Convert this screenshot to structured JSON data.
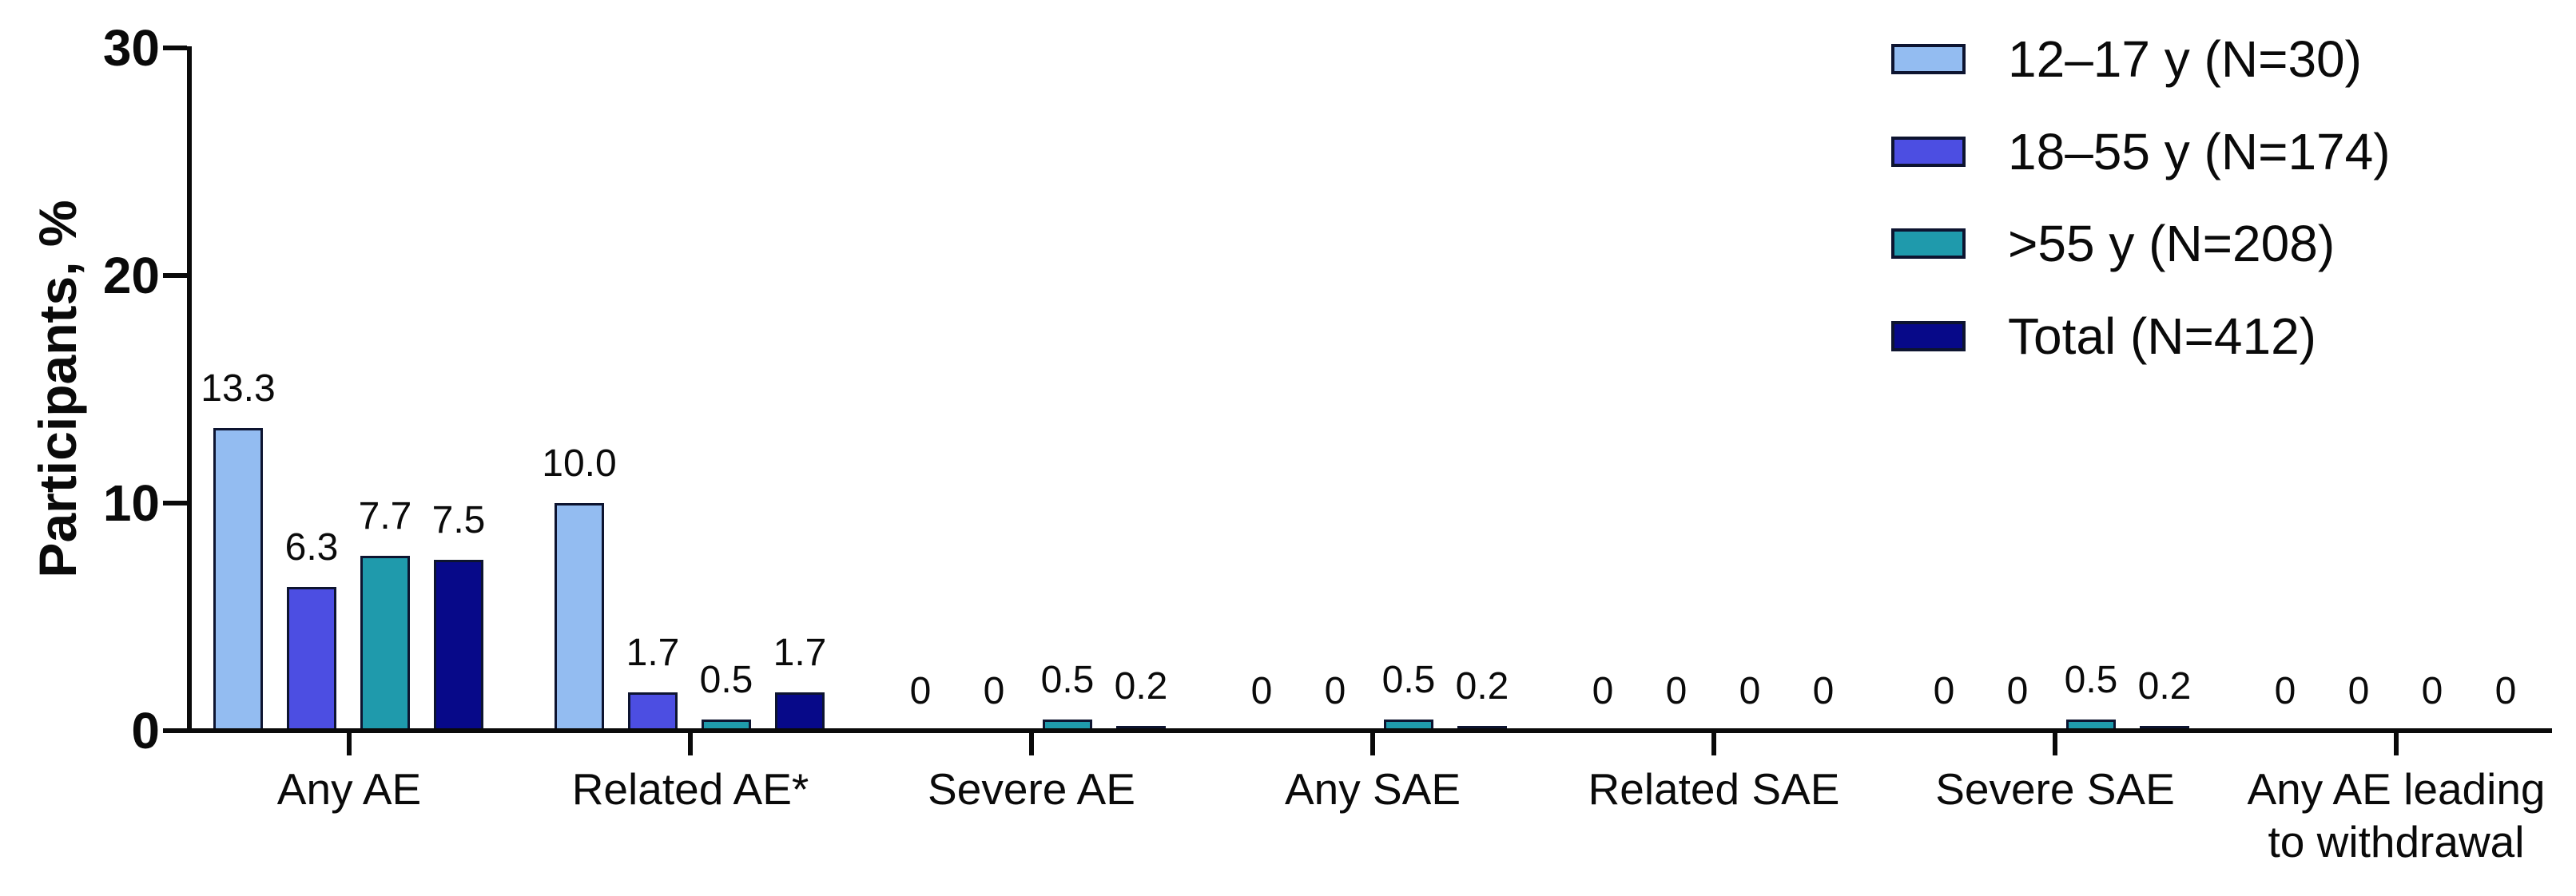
{
  "figure": {
    "background": "#ffffff",
    "text_color": "#0a0a0a"
  },
  "chart_data": {
    "type": "bar",
    "title": "",
    "xlabel": "",
    "ylabel": "Participants, %",
    "ylim": [
      0,
      30
    ],
    "yticks": [
      "0",
      "10",
      "20",
      "30"
    ],
    "ytick_values": [
      0,
      10,
      20,
      30
    ],
    "grid": false,
    "legend_position": "top-right",
    "bar_outline_color": "#0d1430",
    "categories": [
      "Any AE",
      "Related AE*",
      "Severe AE",
      "Any SAE",
      "Related SAE",
      "Severe SAE",
      "Any AE leading\nto withdrawal"
    ],
    "series": [
      {
        "name": "12–17 y (N=30)",
        "color": "#93BCF1",
        "values": [
          13.3,
          10.0,
          0,
          0,
          0,
          0,
          0
        ],
        "labels": [
          "13.3",
          "10.0",
          "0",
          "0",
          "0",
          "0",
          "0"
        ]
      },
      {
        "name": "18–55 y (N=174)",
        "color": "#4C4EE2",
        "values": [
          6.3,
          1.7,
          0,
          0,
          0,
          0,
          0
        ],
        "labels": [
          "6.3",
          "1.7",
          "0",
          "0",
          "0",
          "0",
          "0"
        ]
      },
      {
        "name": ">55 y (N=208)",
        "color": "#1F9AAC",
        "values": [
          7.7,
          0.5,
          0.5,
          0.5,
          0,
          0.5,
          0
        ],
        "labels": [
          "7.7",
          "0.5",
          "0.5",
          "0.5",
          "0",
          "0.5",
          "0"
        ]
      },
      {
        "name": "Total (N=412)",
        "color": "#070989",
        "values": [
          7.5,
          1.7,
          0.2,
          0.2,
          0,
          0.2,
          0
        ],
        "labels": [
          "7.5",
          "1.7",
          "0.2",
          "0.2",
          "0",
          "0.2",
          "0"
        ]
      }
    ]
  }
}
